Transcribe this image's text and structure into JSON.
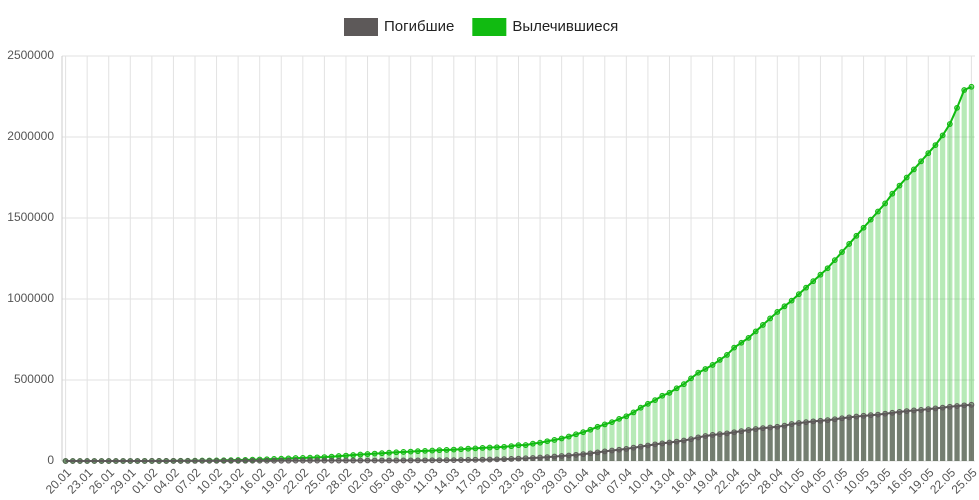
{
  "chart_data": {
    "type": "bar-line",
    "categories": [
      "20.01",
      null,
      null,
      "23.01",
      null,
      null,
      "26.01",
      null,
      null,
      "29.01",
      null,
      null,
      "01.02",
      null,
      null,
      "04.02",
      null,
      null,
      "07.02",
      null,
      null,
      "10.02",
      null,
      null,
      "13.02",
      null,
      null,
      "16.02",
      null,
      null,
      "19.02",
      null,
      null,
      "22.02",
      null,
      null,
      "25.02",
      null,
      null,
      "28.02",
      null,
      null,
      "02.03",
      null,
      null,
      "05.03",
      null,
      null,
      "08.03",
      null,
      null,
      "11.03",
      null,
      null,
      "14.03",
      null,
      null,
      "17.03",
      null,
      null,
      "20.03",
      null,
      null,
      "23.03",
      null,
      null,
      "26.03",
      null,
      null,
      "29.03",
      null,
      null,
      "01.04",
      null,
      null,
      "04.04",
      null,
      null,
      "07.04",
      null,
      null,
      "10.04",
      null,
      null,
      "13.04",
      null,
      null,
      "16.04",
      null,
      null,
      "19.04",
      null,
      null,
      "22.04",
      null,
      null,
      "25.04",
      null,
      null,
      "28.04",
      null,
      null,
      "01.05",
      null,
      null,
      "04.05",
      null,
      null,
      "07.05",
      null,
      null,
      "10.05",
      null,
      null,
      "13.05",
      null,
      null,
      "16.05",
      null,
      null,
      "19.05",
      null,
      null,
      "22.05",
      null,
      null,
      "25.05"
    ],
    "series": [
      {
        "name": "Вылечившиеся",
        "color": "#11bb11",
        "values": [
          0,
          0,
          0,
          30,
          35,
          40,
          50,
          60,
          100,
          125,
          170,
          240,
          290,
          460,
          620,
          900,
          1150,
          1550,
          2050,
          2600,
          3300,
          3900,
          4700,
          5200,
          6200,
          7000,
          8100,
          9400,
          10800,
          12600,
          14400,
          16200,
          18000,
          18900,
          20700,
          22500,
          24000,
          27000,
          30400,
          33300,
          36700,
          39800,
          42700,
          45600,
          48200,
          51200,
          53800,
          55800,
          58000,
          60700,
          62500,
          64400,
          67000,
          68300,
          70300,
          72600,
          76000,
          78000,
          80800,
          83000,
          85000,
          87400,
          91700,
          97900,
          98300,
          107000,
          113000,
          122000,
          130000,
          139000,
          151000,
          165000,
          178000,
          193000,
          211000,
          226000,
          240000,
          260000,
          276000,
          300000,
          329000,
          353000,
          376000,
          403000,
          421000,
          449000,
          474000,
          510000,
          545000,
          568000,
          593000,
          624000,
          655000,
          700000,
          730000,
          760000,
          800000,
          840000,
          880000,
          920000,
          955000,
          990000,
          1030000,
          1070000,
          1110000,
          1150000,
          1190000,
          1240000,
          1290000,
          1340000,
          1390000,
          1440000,
          1490000,
          1540000,
          1590000,
          1650000,
          1700000,
          1750000,
          1800000,
          1850000,
          1900000,
          1950000,
          2010000,
          2080000,
          2180000,
          2290000,
          2310000
        ]
      },
      {
        "name": "Погибшие",
        "color": "#5d5959",
        "values": [
          6,
          6,
          9,
          17,
          25,
          41,
          56,
          80,
          106,
          132,
          170,
          213,
          259,
          304,
          362,
          426,
          492,
          565,
          638,
          724,
          813,
          910,
          1018,
          1115,
          1261,
          1383,
          1526,
          1669,
          1775,
          1873,
          2009,
          2126,
          2247,
          2360,
          2460,
          2618,
          2699,
          2763,
          2800,
          2858,
          2924,
          2980,
          3050,
          3120,
          3200,
          3290,
          3390,
          3500,
          3600,
          3800,
          4000,
          4300,
          4600,
          5000,
          5400,
          5800,
          6500,
          7200,
          7900,
          8900,
          10000,
          11400,
          13000,
          14600,
          16500,
          18600,
          21200,
          24100,
          27300,
          30800,
          34000,
          38000,
          42300,
          47200,
          53100,
          59200,
          64700,
          69400,
          74600,
          82100,
          88500,
          95700,
          102700,
          108500,
          114100,
          119700,
          126600,
          134600,
          145400,
          154300,
          160800,
          165900,
          170400,
          177600,
          184200,
          190900,
          197200,
          202800,
          206600,
          211300,
          217900,
          228000,
          234100,
          239600,
          244700,
          248300,
          251800,
          257400,
          263800,
          269500,
          274300,
          278900,
          282700,
          286300,
          291900,
          297400,
          303000,
          308100,
          312100,
          315200,
          319900,
          324500,
          329300,
          334600,
          339400,
          343500,
          346800
        ]
      }
    ],
    "ylim": [
      0,
      2500000
    ],
    "yticks": [
      0,
      500000,
      1000000,
      1500000,
      2000000,
      2500000
    ],
    "grid": true,
    "legend": "top"
  }
}
